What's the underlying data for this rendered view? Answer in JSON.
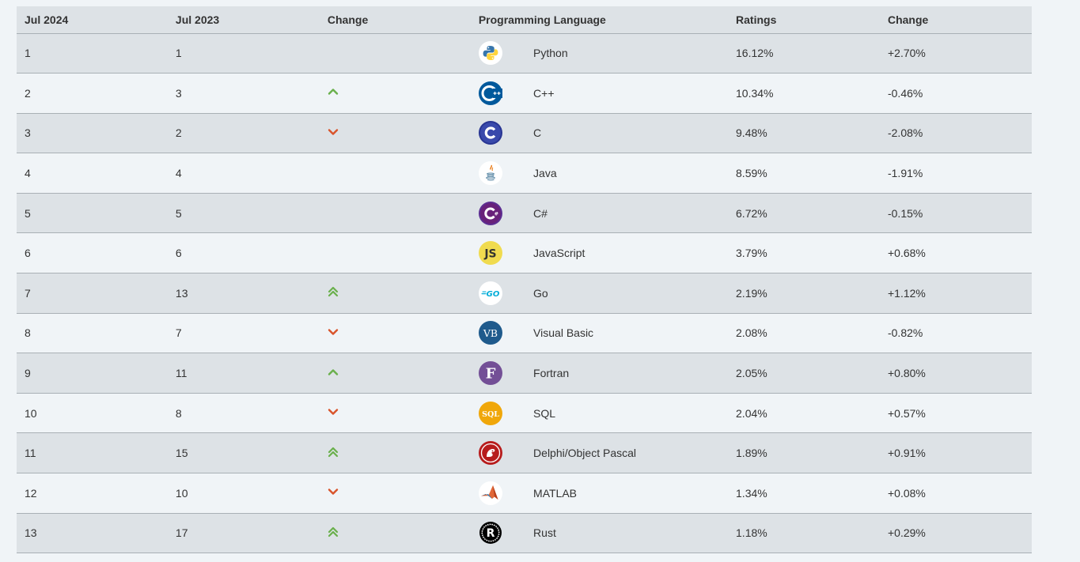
{
  "columns": {
    "this_year": "Jul 2024",
    "last_year": "Jul 2023",
    "change_arrow": "Change",
    "language": "Programming Language",
    "ratings": "Ratings",
    "change_pct": "Change"
  },
  "colors": {
    "up": "#6ab04c",
    "down": "#d9542b"
  },
  "rows": [
    {
      "rank": "1",
      "prev": "1",
      "trend": "none",
      "logo": "python-icon",
      "language": "Python",
      "rating": "16.12%",
      "change": "+2.70%"
    },
    {
      "rank": "2",
      "prev": "3",
      "trend": "up",
      "logo": "cpp-icon",
      "language": "C++",
      "rating": "10.34%",
      "change": "-0.46%"
    },
    {
      "rank": "3",
      "prev": "2",
      "trend": "down",
      "logo": "c-icon",
      "language": "C",
      "rating": "9.48%",
      "change": "-2.08%"
    },
    {
      "rank": "4",
      "prev": "4",
      "trend": "none",
      "logo": "java-icon",
      "language": "Java",
      "rating": "8.59%",
      "change": "-1.91%"
    },
    {
      "rank": "5",
      "prev": "5",
      "trend": "none",
      "logo": "csharp-icon",
      "language": "C#",
      "rating": "6.72%",
      "change": "-0.15%"
    },
    {
      "rank": "6",
      "prev": "6",
      "trend": "none",
      "logo": "javascript-icon",
      "language": "JavaScript",
      "rating": "3.79%",
      "change": "+0.68%"
    },
    {
      "rank": "7",
      "prev": "13",
      "trend": "up2",
      "logo": "go-icon",
      "language": "Go",
      "rating": "2.19%",
      "change": "+1.12%"
    },
    {
      "rank": "8",
      "prev": "7",
      "trend": "down",
      "logo": "visual-basic-icon",
      "language": "Visual Basic",
      "rating": "2.08%",
      "change": "-0.82%"
    },
    {
      "rank": "9",
      "prev": "11",
      "trend": "up",
      "logo": "fortran-icon",
      "language": "Fortran",
      "rating": "2.05%",
      "change": "+0.80%"
    },
    {
      "rank": "10",
      "prev": "8",
      "trend": "down",
      "logo": "sql-icon",
      "language": "SQL",
      "rating": "2.04%",
      "change": "+0.57%"
    },
    {
      "rank": "11",
      "prev": "15",
      "trend": "up2",
      "logo": "delphi-icon",
      "language": "Delphi/Object Pascal",
      "rating": "1.89%",
      "change": "+0.91%"
    },
    {
      "rank": "12",
      "prev": "10",
      "trend": "down",
      "logo": "matlab-icon",
      "language": "MATLAB",
      "rating": "1.34%",
      "change": "+0.08%"
    },
    {
      "rank": "13",
      "prev": "17",
      "trend": "up2",
      "logo": "rust-icon",
      "language": "Rust",
      "rating": "1.18%",
      "change": "+0.29%"
    }
  ]
}
